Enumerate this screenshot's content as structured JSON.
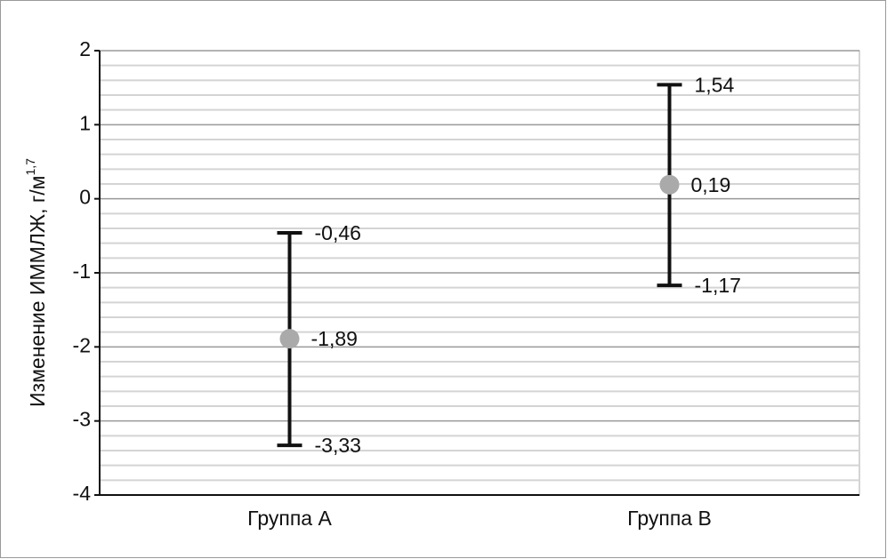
{
  "chart_data": {
    "type": "errorbar",
    "ylabel": "Изменение ИММЛЖ, г/м",
    "ylabel_sup": "1,7",
    "categories": [
      "Группа A",
      "Группа B"
    ],
    "values": [
      -1.89,
      0.19
    ],
    "value_labels": [
      "-1,89",
      "0,19"
    ],
    "lower": [
      -3.33,
      -1.17
    ],
    "lower_labels": [
      "-3,33",
      "-1,17"
    ],
    "upper": [
      -0.46,
      1.54
    ],
    "upper_labels": [
      "-0,46",
      "1,54"
    ],
    "point_color": "#aaaaaa",
    "bar_color": "#111111",
    "ylim": [
      -4,
      2
    ],
    "yticks": [
      -4,
      -3,
      -2,
      -1,
      0,
      1,
      2
    ],
    "grid": true,
    "minor_grid_divisions": 5
  }
}
